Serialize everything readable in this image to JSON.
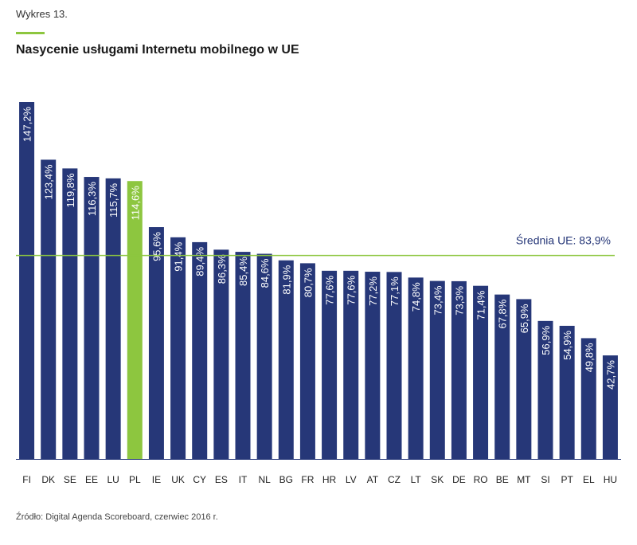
{
  "figure": {
    "caption": "Wykres 13.",
    "source": "Źródło: Digital Agenda Scoreboard, czerwiec 2016 r."
  },
  "colors": {
    "bar": "#263778",
    "highlight": "#8dc63f",
    "average_line": "#8dc63f",
    "average_text": "#263778"
  },
  "chart_data": {
    "type": "bar",
    "title": "Nasycenie usługami Internetu mobilnego w UE",
    "xlabel": "",
    "ylabel": "",
    "ylim": [
      0,
      147.2
    ],
    "grid": false,
    "categories": [
      "FI",
      "DK",
      "SE",
      "EE",
      "LU",
      "PL",
      "IE",
      "UK",
      "CY",
      "ES",
      "IT",
      "NL",
      "BG",
      "FR",
      "HR",
      "LV",
      "AT",
      "CZ",
      "LT",
      "SK",
      "DE",
      "RO",
      "BE",
      "MT",
      "SI",
      "PT",
      "EL",
      "HU"
    ],
    "values": [
      147.2,
      123.4,
      119.8,
      116.3,
      115.7,
      114.6,
      95.6,
      91.4,
      89.4,
      86.3,
      85.4,
      84.6,
      81.9,
      80.7,
      77.6,
      77.6,
      77.2,
      77.1,
      74.8,
      73.4,
      73.3,
      71.4,
      67.8,
      65.9,
      56.9,
      54.9,
      49.8,
      42.7
    ],
    "labels": [
      "147,2%",
      "123,4%",
      "119,8%",
      "116,3%",
      "115,7%",
      "114,6%",
      "95,6%",
      "91,4%",
      "89,4%",
      "86,3%",
      "85,4%",
      "84,6%",
      "81,9%",
      "80,7%",
      "77,6%",
      "77,6%",
      "77,2%",
      "77,1%",
      "74,8%",
      "73,4%",
      "73,3%",
      "71,4%",
      "67,8%",
      "65,9%",
      "56,9%",
      "54,9%",
      "49,8%",
      "42,7%"
    ],
    "highlight_category": "PL",
    "average": {
      "label": "Średnia UE: 83,9%",
      "value": 83.9
    }
  }
}
